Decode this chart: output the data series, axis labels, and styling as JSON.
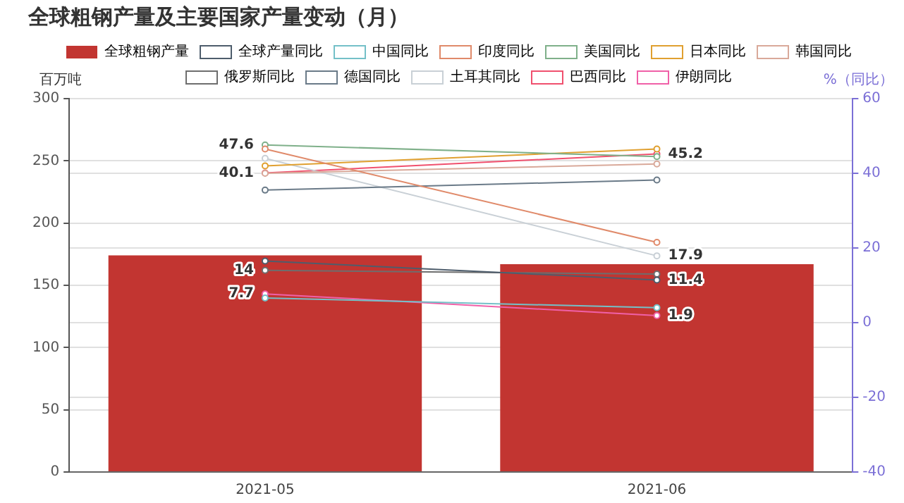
{
  "chart_data": {
    "type": "bar",
    "title": "全球粗钢产量及主要国家产量变动（月）",
    "ylabel": "百万吨",
    "y2label": "%（同比）",
    "categories": [
      "2021-05",
      "2021-06"
    ],
    "ylim": [
      0,
      300
    ],
    "yticks": [
      0,
      50,
      100,
      150,
      200,
      250,
      300
    ],
    "y2lim": [
      -40,
      60
    ],
    "y2ticks": [
      -40,
      -20,
      0,
      20,
      40,
      60
    ],
    "grid": "y",
    "legend": "top",
    "marker": "circle",
    "series": [
      {
        "name": "全球粗钢产量",
        "color": "#c23531",
        "values": [
          174,
          167
        ]
      },
      {
        "name": "全球产量同比",
        "type": "line",
        "axis": "y2",
        "color": "#4e5d6c",
        "values": [
          16.5,
          11.4
        ],
        "value_labels": [
          null,
          "11.4"
        ]
      },
      {
        "name": "中国同比",
        "type": "line",
        "axis": "y2",
        "color": "#74c0c8",
        "values": [
          6.6,
          4
        ]
      },
      {
        "name": "印度同比",
        "type": "line",
        "axis": "y2",
        "color": "#e08a6a",
        "values": [
          46.5,
          21.5
        ]
      },
      {
        "name": "美国同比",
        "type": "line",
        "axis": "y2",
        "color": "#7fb08a",
        "values": [
          47.6,
          44.5
        ],
        "value_labels": [
          "47.6",
          null
        ]
      },
      {
        "name": "日本同比",
        "type": "line",
        "axis": "y2",
        "color": "#e0a030",
        "values": [
          42,
          46.5
        ]
      },
      {
        "name": "韩国同比",
        "type": "line",
        "axis": "y2",
        "color": "#d9a99a",
        "values": [
          40,
          42.5
        ]
      },
      {
        "name": "俄罗斯同比",
        "type": "line",
        "axis": "y2",
        "color": "#6e6e6e",
        "values": [
          14,
          13
        ],
        "value_labels": [
          "14",
          null
        ]
      },
      {
        "name": "德国同比",
        "type": "line",
        "axis": "y2",
        "color": "#6a7a88",
        "values": [
          35.5,
          38.2
        ]
      },
      {
        "name": "土耳其同比",
        "type": "line",
        "axis": "y2",
        "color": "#c9d0d6",
        "values": [
          44,
          17.9
        ],
        "value_labels": [
          null,
          "17.9"
        ]
      },
      {
        "name": "巴西同比",
        "type": "line",
        "axis": "y2",
        "color": "#f0506e",
        "values": [
          40.1,
          45.2
        ],
        "value_labels": [
          "40.1",
          "45.2"
        ]
      },
      {
        "name": "伊朗同比",
        "type": "line",
        "axis": "y2",
        "color": "#f060a8",
        "values": [
          7.7,
          1.9
        ],
        "value_labels": [
          "7.7",
          "1.9"
        ]
      }
    ]
  }
}
